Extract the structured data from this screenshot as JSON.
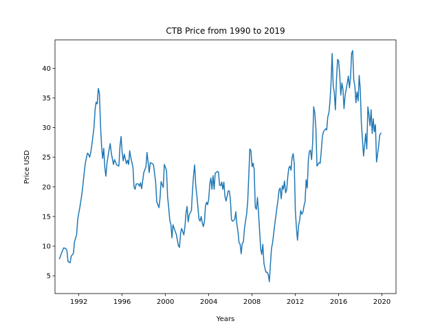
{
  "chart_data": {
    "type": "line",
    "title": "CTB Price from 1990 to 2019",
    "xlabel": "Years",
    "ylabel": "Price USD",
    "xlim": [
      1989.8,
      2021.3
    ],
    "ylim": [
      2.0,
      44.8
    ],
    "xticks": [
      1992,
      1996,
      2000,
      2004,
      2008,
      2012,
      2016,
      2020
    ],
    "yticks": [
      5,
      10,
      15,
      20,
      25,
      30,
      35,
      40
    ],
    "grid": false,
    "series": [
      {
        "color": "#1f77b4",
        "points": [
          [
            1990.2,
            7.8
          ],
          [
            1990.4,
            8.8
          ],
          [
            1990.6,
            9.7
          ],
          [
            1990.8,
            9.6
          ],
          [
            1990.9,
            9.3
          ],
          [
            1991.0,
            7.4
          ],
          [
            1991.2,
            7.2
          ],
          [
            1991.3,
            8.3
          ],
          [
            1991.5,
            8.8
          ],
          [
            1991.6,
            10.7
          ],
          [
            1991.8,
            12.0
          ],
          [
            1991.9,
            14.6
          ],
          [
            1992.1,
            16.6
          ],
          [
            1992.3,
            19.0
          ],
          [
            1992.5,
            22.4
          ],
          [
            1992.6,
            24.0
          ],
          [
            1992.8,
            25.7
          ],
          [
            1992.9,
            25.5
          ],
          [
            1993.0,
            25.0
          ],
          [
            1993.1,
            25.8
          ],
          [
            1993.2,
            27.0
          ],
          [
            1993.4,
            30.0
          ],
          [
            1993.5,
            33.0
          ],
          [
            1993.6,
            34.3
          ],
          [
            1993.7,
            34.0
          ],
          [
            1993.8,
            36.6
          ],
          [
            1993.9,
            35.8
          ],
          [
            1994.0,
            30.7
          ],
          [
            1994.1,
            27.0
          ],
          [
            1994.2,
            24.8
          ],
          [
            1994.3,
            26.5
          ],
          [
            1994.4,
            23.3
          ],
          [
            1994.5,
            21.8
          ],
          [
            1994.6,
            24.0
          ],
          [
            1994.8,
            26.3
          ],
          [
            1994.9,
            27.3
          ],
          [
            1995.0,
            25.7
          ],
          [
            1995.2,
            23.8
          ],
          [
            1995.3,
            24.6
          ],
          [
            1995.5,
            23.7
          ],
          [
            1995.7,
            23.5
          ],
          [
            1995.8,
            26.8
          ],
          [
            1995.9,
            28.5
          ],
          [
            1996.0,
            25.9
          ],
          [
            1996.1,
            24.4
          ],
          [
            1996.2,
            25.5
          ],
          [
            1996.4,
            23.9
          ],
          [
            1996.5,
            24.5
          ],
          [
            1996.6,
            23.8
          ],
          [
            1996.7,
            26.1
          ],
          [
            1996.8,
            25.0
          ],
          [
            1997.0,
            23.3
          ],
          [
            1997.1,
            20.0
          ],
          [
            1997.2,
            19.6
          ],
          [
            1997.3,
            20.5
          ],
          [
            1997.5,
            20.5
          ],
          [
            1997.6,
            20.1
          ],
          [
            1997.7,
            20.7
          ],
          [
            1997.8,
            19.7
          ],
          [
            1998.0,
            22.4
          ],
          [
            1998.2,
            23.4
          ],
          [
            1998.3,
            25.8
          ],
          [
            1998.4,
            24.2
          ],
          [
            1998.5,
            22.4
          ],
          [
            1998.6,
            24.1
          ],
          [
            1998.8,
            23.9
          ],
          [
            1998.9,
            23.7
          ],
          [
            1999.1,
            20.8
          ],
          [
            1999.2,
            17.5
          ],
          [
            1999.3,
            17.0
          ],
          [
            1999.4,
            16.5
          ],
          [
            1999.5,
            18.0
          ],
          [
            1999.6,
            20.9
          ],
          [
            1999.8,
            19.9
          ],
          [
            1999.9,
            23.8
          ],
          [
            2000.1,
            22.8
          ],
          [
            2000.2,
            18.3
          ],
          [
            2000.3,
            16.6
          ],
          [
            2000.4,
            14.4
          ],
          [
            2000.5,
            13.7
          ],
          [
            2000.6,
            11.4
          ],
          [
            2000.7,
            13.6
          ],
          [
            2000.9,
            12.5
          ],
          [
            2001.0,
            12.0
          ],
          [
            2001.2,
            10.1
          ],
          [
            2001.3,
            9.8
          ],
          [
            2001.4,
            12.2
          ],
          [
            2001.5,
            13.0
          ],
          [
            2001.7,
            11.9
          ],
          [
            2001.8,
            13.3
          ],
          [
            2001.9,
            15.5
          ],
          [
            2002.0,
            16.7
          ],
          [
            2002.1,
            14.1
          ],
          [
            2002.2,
            15.3
          ],
          [
            2002.4,
            16.0
          ],
          [
            2002.5,
            19.4
          ],
          [
            2002.6,
            21.9
          ],
          [
            2002.7,
            23.7
          ],
          [
            2002.8,
            20.3
          ],
          [
            2002.9,
            18.6
          ],
          [
            2003.1,
            14.6
          ],
          [
            2003.2,
            14.2
          ],
          [
            2003.3,
            15.0
          ],
          [
            2003.4,
            14.0
          ],
          [
            2003.5,
            13.3
          ],
          [
            2003.6,
            14.1
          ],
          [
            2003.7,
            16.8
          ],
          [
            2003.8,
            17.4
          ],
          [
            2003.9,
            17.0
          ],
          [
            2004.0,
            18.0
          ],
          [
            2004.1,
            20.5
          ],
          [
            2004.2,
            21.5
          ],
          [
            2004.3,
            19.6
          ],
          [
            2004.4,
            21.9
          ],
          [
            2004.5,
            19.6
          ],
          [
            2004.6,
            22.3
          ],
          [
            2004.8,
            22.6
          ],
          [
            2004.9,
            22.5
          ],
          [
            2005.0,
            20.3
          ],
          [
            2005.1,
            20.2
          ],
          [
            2005.2,
            20.8
          ],
          [
            2005.3,
            19.6
          ],
          [
            2005.4,
            20.8
          ],
          [
            2005.5,
            18.4
          ],
          [
            2005.6,
            17.6
          ],
          [
            2005.8,
            19.3
          ],
          [
            2005.9,
            19.3
          ],
          [
            2006.0,
            17.9
          ],
          [
            2006.1,
            14.5
          ],
          [
            2006.2,
            14.2
          ],
          [
            2006.4,
            14.5
          ],
          [
            2006.5,
            15.8
          ],
          [
            2006.6,
            13.7
          ],
          [
            2006.7,
            12.5
          ],
          [
            2006.8,
            10.6
          ],
          [
            2006.9,
            10.3
          ],
          [
            2007.0,
            8.7
          ],
          [
            2007.1,
            10.5
          ],
          [
            2007.2,
            10.7
          ],
          [
            2007.3,
            13.0
          ],
          [
            2007.5,
            15.4
          ],
          [
            2007.6,
            17.5
          ],
          [
            2007.7,
            22.0
          ],
          [
            2007.8,
            26.4
          ],
          [
            2007.9,
            26.1
          ],
          [
            2008.0,
            23.4
          ],
          [
            2008.1,
            24.0
          ],
          [
            2008.2,
            22.9
          ],
          [
            2008.3,
            16.6
          ],
          [
            2008.4,
            16.2
          ],
          [
            2008.5,
            18.2
          ],
          [
            2008.6,
            15.7
          ],
          [
            2008.7,
            12.6
          ],
          [
            2008.8,
            9.5
          ],
          [
            2008.9,
            8.6
          ],
          [
            2009.0,
            10.3
          ],
          [
            2009.1,
            7.1
          ],
          [
            2009.2,
            6.2
          ],
          [
            2009.3,
            5.6
          ],
          [
            2009.4,
            5.6
          ],
          [
            2009.5,
            5.2
          ],
          [
            2009.6,
            4.0
          ],
          [
            2009.7,
            6.9
          ],
          [
            2009.8,
            9.6
          ],
          [
            2009.9,
            10.6
          ],
          [
            2010.1,
            13.6
          ],
          [
            2010.3,
            16.5
          ],
          [
            2010.4,
            17.8
          ],
          [
            2010.5,
            19.5
          ],
          [
            2010.6,
            19.8
          ],
          [
            2010.7,
            18.0
          ],
          [
            2010.8,
            20.2
          ],
          [
            2010.9,
            19.6
          ],
          [
            2011.0,
            21.0
          ],
          [
            2011.1,
            19.0
          ],
          [
            2011.2,
            19.5
          ],
          [
            2011.3,
            21.6
          ],
          [
            2011.4,
            23.2
          ],
          [
            2011.5,
            23.5
          ],
          [
            2011.6,
            22.8
          ],
          [
            2011.7,
            24.9
          ],
          [
            2011.8,
            25.6
          ],
          [
            2011.9,
            24.0
          ],
          [
            2012.0,
            16.0
          ],
          [
            2012.1,
            13.2
          ],
          [
            2012.2,
            11.0
          ],
          [
            2012.3,
            13.5
          ],
          [
            2012.4,
            14.4
          ],
          [
            2012.5,
            16.0
          ],
          [
            2012.6,
            15.4
          ],
          [
            2012.7,
            15.7
          ],
          [
            2012.8,
            16.8
          ],
          [
            2012.9,
            17.5
          ],
          [
            2013.0,
            21.2
          ],
          [
            2013.1,
            19.8
          ],
          [
            2013.2,
            24.5
          ],
          [
            2013.3,
            26.0
          ],
          [
            2013.4,
            26.2
          ],
          [
            2013.5,
            24.6
          ],
          [
            2013.6,
            27.5
          ],
          [
            2013.7,
            33.5
          ],
          [
            2013.8,
            32.5
          ],
          [
            2013.9,
            29.8
          ],
          [
            2014.0,
            23.5
          ],
          [
            2014.1,
            23.8
          ],
          [
            2014.2,
            24.1
          ],
          [
            2014.3,
            24.0
          ],
          [
            2014.4,
            26.2
          ],
          [
            2014.5,
            28.5
          ],
          [
            2014.6,
            29.3
          ],
          [
            2014.8,
            29.8
          ],
          [
            2014.9,
            29.6
          ],
          [
            2015.0,
            31.8
          ],
          [
            2015.1,
            32.5
          ],
          [
            2015.2,
            34.3
          ],
          [
            2015.3,
            37.5
          ],
          [
            2015.4,
            42.5
          ],
          [
            2015.5,
            37.0
          ],
          [
            2015.6,
            36.0
          ],
          [
            2015.7,
            33.0
          ],
          [
            2015.8,
            38.0
          ],
          [
            2015.9,
            41.5
          ],
          [
            2016.0,
            41.3
          ],
          [
            2016.1,
            39.0
          ],
          [
            2016.2,
            35.5
          ],
          [
            2016.3,
            37.5
          ],
          [
            2016.4,
            36.5
          ],
          [
            2016.5,
            33.2
          ],
          [
            2016.6,
            35.5
          ],
          [
            2016.7,
            36.5
          ],
          [
            2016.8,
            37.5
          ],
          [
            2016.9,
            38.7
          ],
          [
            2017.0,
            36.7
          ],
          [
            2017.1,
            38.5
          ],
          [
            2017.2,
            42.5
          ],
          [
            2017.3,
            43.0
          ],
          [
            2017.4,
            38.0
          ],
          [
            2017.5,
            37.0
          ],
          [
            2017.6,
            34.2
          ],
          [
            2017.7,
            36.0
          ],
          [
            2017.8,
            34.5
          ],
          [
            2017.9,
            38.8
          ],
          [
            2018.0,
            36.5
          ],
          [
            2018.1,
            30.8
          ],
          [
            2018.2,
            28.0
          ],
          [
            2018.3,
            25.2
          ],
          [
            2018.4,
            27.0
          ],
          [
            2018.5,
            29.0
          ],
          [
            2018.6,
            26.4
          ],
          [
            2018.7,
            33.5
          ],
          [
            2018.8,
            32.2
          ],
          [
            2018.9,
            30.3
          ],
          [
            2019.0,
            33.0
          ],
          [
            2019.1,
            29.0
          ],
          [
            2019.2,
            31.5
          ],
          [
            2019.3,
            29.3
          ],
          [
            2019.4,
            30.5
          ],
          [
            2019.5,
            24.2
          ],
          [
            2019.6,
            25.5
          ],
          [
            2019.7,
            27.0
          ],
          [
            2019.8,
            28.8
          ],
          [
            2019.95,
            29.1
          ]
        ]
      }
    ]
  }
}
